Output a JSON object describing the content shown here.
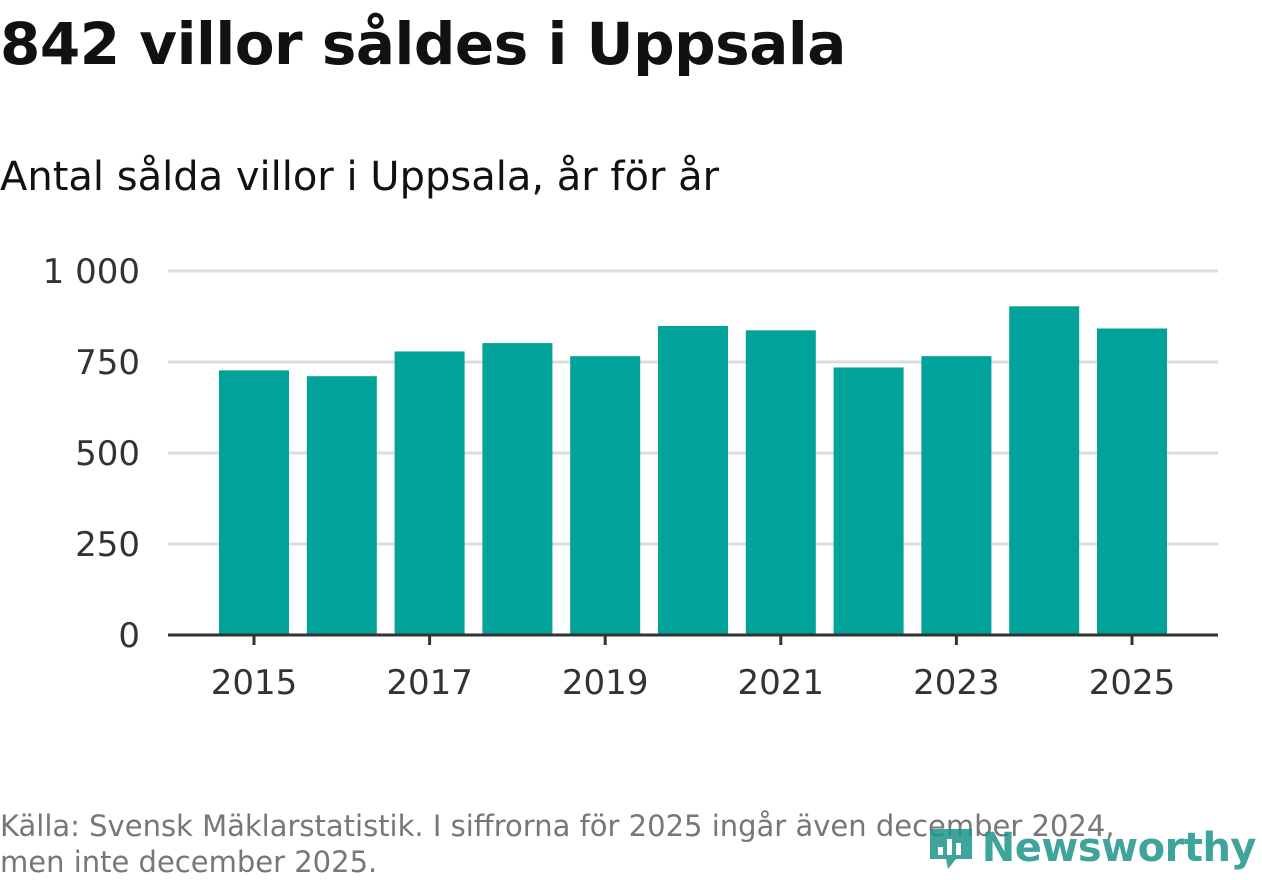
{
  "title": "842 villor såldes i Uppsala",
  "subtitle": "Antal sålda villor i Uppsala, år för år",
  "source_line1": "Källa: Svensk Mäklarstatistik. I siffrorna för 2025 ingår även december 2024,",
  "source_line2": "men inte december 2025.",
  "brand": {
    "name": "Newsworthy",
    "icon": "newsworthy-logo-icon",
    "color": "#1e958a"
  },
  "colors": {
    "bar": "#00a29a",
    "grid": "#dddddd",
    "axis": "#333333"
  },
  "chart_data": {
    "type": "bar",
    "categories": [
      "2015",
      "2016",
      "2017",
      "2018",
      "2019",
      "2020",
      "2021",
      "2022",
      "2023",
      "2024",
      "2025"
    ],
    "values": [
      727,
      711,
      779,
      802,
      766,
      849,
      837,
      735,
      766,
      903,
      842
    ],
    "y_ticks": [
      0,
      250,
      500,
      750,
      1000
    ],
    "y_tick_labels": [
      "0",
      "250",
      "500",
      "750",
      "1 000"
    ],
    "x_tick_labels": [
      "2015",
      "2017",
      "2019",
      "2021",
      "2023",
      "2025"
    ],
    "ylim": [
      0,
      1000
    ],
    "title": "842 villor såldes i Uppsala",
    "xlabel": "",
    "ylabel": "",
    "grid": true
  }
}
